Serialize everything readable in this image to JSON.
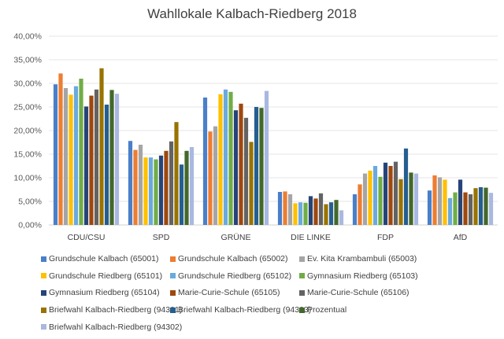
{
  "chart_data": {
    "type": "bar",
    "title": "Wahllokale Kalbach-Riedberg 2018",
    "xlabel": "",
    "ylabel": "",
    "ylim": [
      0,
      40
    ],
    "yticks": [
      "0,00%",
      "5,00%",
      "10,00%",
      "15,00%",
      "20,00%",
      "25,00%",
      "30,00%",
      "35,00%",
      "40,00%"
    ],
    "grid": true,
    "legend_position": "bottom",
    "categories": [
      "CDU/CSU",
      "SPD",
      "GRÜNE",
      "DIE LINKE",
      "FDP",
      "AfD"
    ],
    "series": [
      {
        "name": "Grundschule Kalbach (65001)",
        "color": "#4A7FC9",
        "values": [
          29.8,
          17.8,
          27.0,
          7.0,
          6.5,
          7.3
        ]
      },
      {
        "name": "Grundschule Kalbach (65002)",
        "color": "#ED7D31",
        "values": [
          32.1,
          15.9,
          19.8,
          7.1,
          8.6,
          10.5
        ]
      },
      {
        "name": "Ev. Kita Krambambuli (65003)",
        "color": "#A5A5A5",
        "values": [
          29.0,
          17.0,
          20.9,
          6.5,
          10.9,
          10.1
        ]
      },
      {
        "name": "Grundschule Riedberg (65101)",
        "color": "#FFC000",
        "values": [
          27.6,
          14.3,
          27.7,
          4.6,
          11.5,
          9.6
        ]
      },
      {
        "name": "Grundschule Riedberg (65102)",
        "color": "#6AAADD",
        "values": [
          29.4,
          14.3,
          28.7,
          4.8,
          12.5,
          5.7
        ]
      },
      {
        "name": "Gymnasium Riedberg (65103)",
        "color": "#70AD47",
        "values": [
          31.0,
          13.9,
          28.2,
          4.7,
          10.2,
          6.9
        ]
      },
      {
        "name": "Gymnasium Riedberg (65104)",
        "color": "#264478",
        "values": [
          25.1,
          14.7,
          24.3,
          6.1,
          13.2,
          9.6
        ]
      },
      {
        "name": "Marie-Curie-Schule (65105)",
        "color": "#9E480E",
        "values": [
          27.4,
          15.7,
          25.7,
          5.6,
          12.5,
          6.9
        ]
      },
      {
        "name": "Marie-Curie-Schule (65106)",
        "color": "#636363",
        "values": [
          28.7,
          17.7,
          22.7,
          6.7,
          13.4,
          6.5
        ]
      },
      {
        "name": "Briefwahl Kalbach-Riedberg (94301)",
        "color": "#997300",
        "values": [
          33.2,
          21.8,
          17.6,
          4.4,
          9.7,
          7.8
        ]
      },
      {
        "name": "Briefwahl Kalbach-Riedberg (94303)",
        "color": "#255E91",
        "values": [
          25.5,
          12.8,
          25.0,
          4.8,
          16.2,
          8.0
        ]
      },
      {
        "name": "Prozentual",
        "color": "#43682B",
        "values": [
          28.6,
          15.7,
          24.8,
          5.3,
          11.1,
          7.9
        ]
      },
      {
        "name": "Briefwahl Kalbach-Riedberg (94302)",
        "color": "#A9B8E0",
        "values": [
          27.8,
          16.5,
          28.4,
          3.1,
          10.9,
          6.8
        ]
      }
    ]
  }
}
